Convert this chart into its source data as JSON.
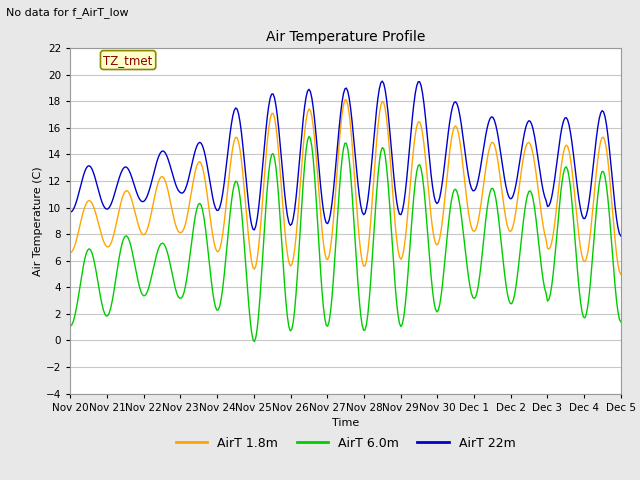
{
  "title": "Air Temperature Profile",
  "subtitle": "No data for f_AirT_low",
  "xlabel": "Time",
  "ylabel": "Air Temperature (C)",
  "ylim": [
    -4,
    22
  ],
  "yticks": [
    -4,
    -2,
    0,
    2,
    4,
    6,
    8,
    10,
    12,
    14,
    16,
    18,
    20,
    22
  ],
  "xtick_labels": [
    "Nov 20",
    "Nov 21",
    "Nov 22",
    "Nov 23",
    "Nov 24",
    "Nov 25",
    "Nov 26",
    "Nov 27",
    "Nov 28",
    "Nov 29",
    "Nov 30",
    "Dec 1",
    "Dec 2",
    "Dec 3",
    "Dec 4",
    "Dec 5"
  ],
  "color_18m": "#FFA500",
  "color_60m": "#00CC00",
  "color_22m": "#0000CC",
  "legend_entries": [
    "AirT 1.8m",
    "AirT 6.0m",
    "AirT 22m"
  ],
  "annotation_text": "TZ_tmet",
  "background_color": "#E8E8E8",
  "plot_bg_color": "#FFFFFF",
  "grid_color": "#C8C8C8",
  "linewidth": 1.0,
  "fig_width": 6.4,
  "fig_height": 4.8,
  "dpi": 100
}
